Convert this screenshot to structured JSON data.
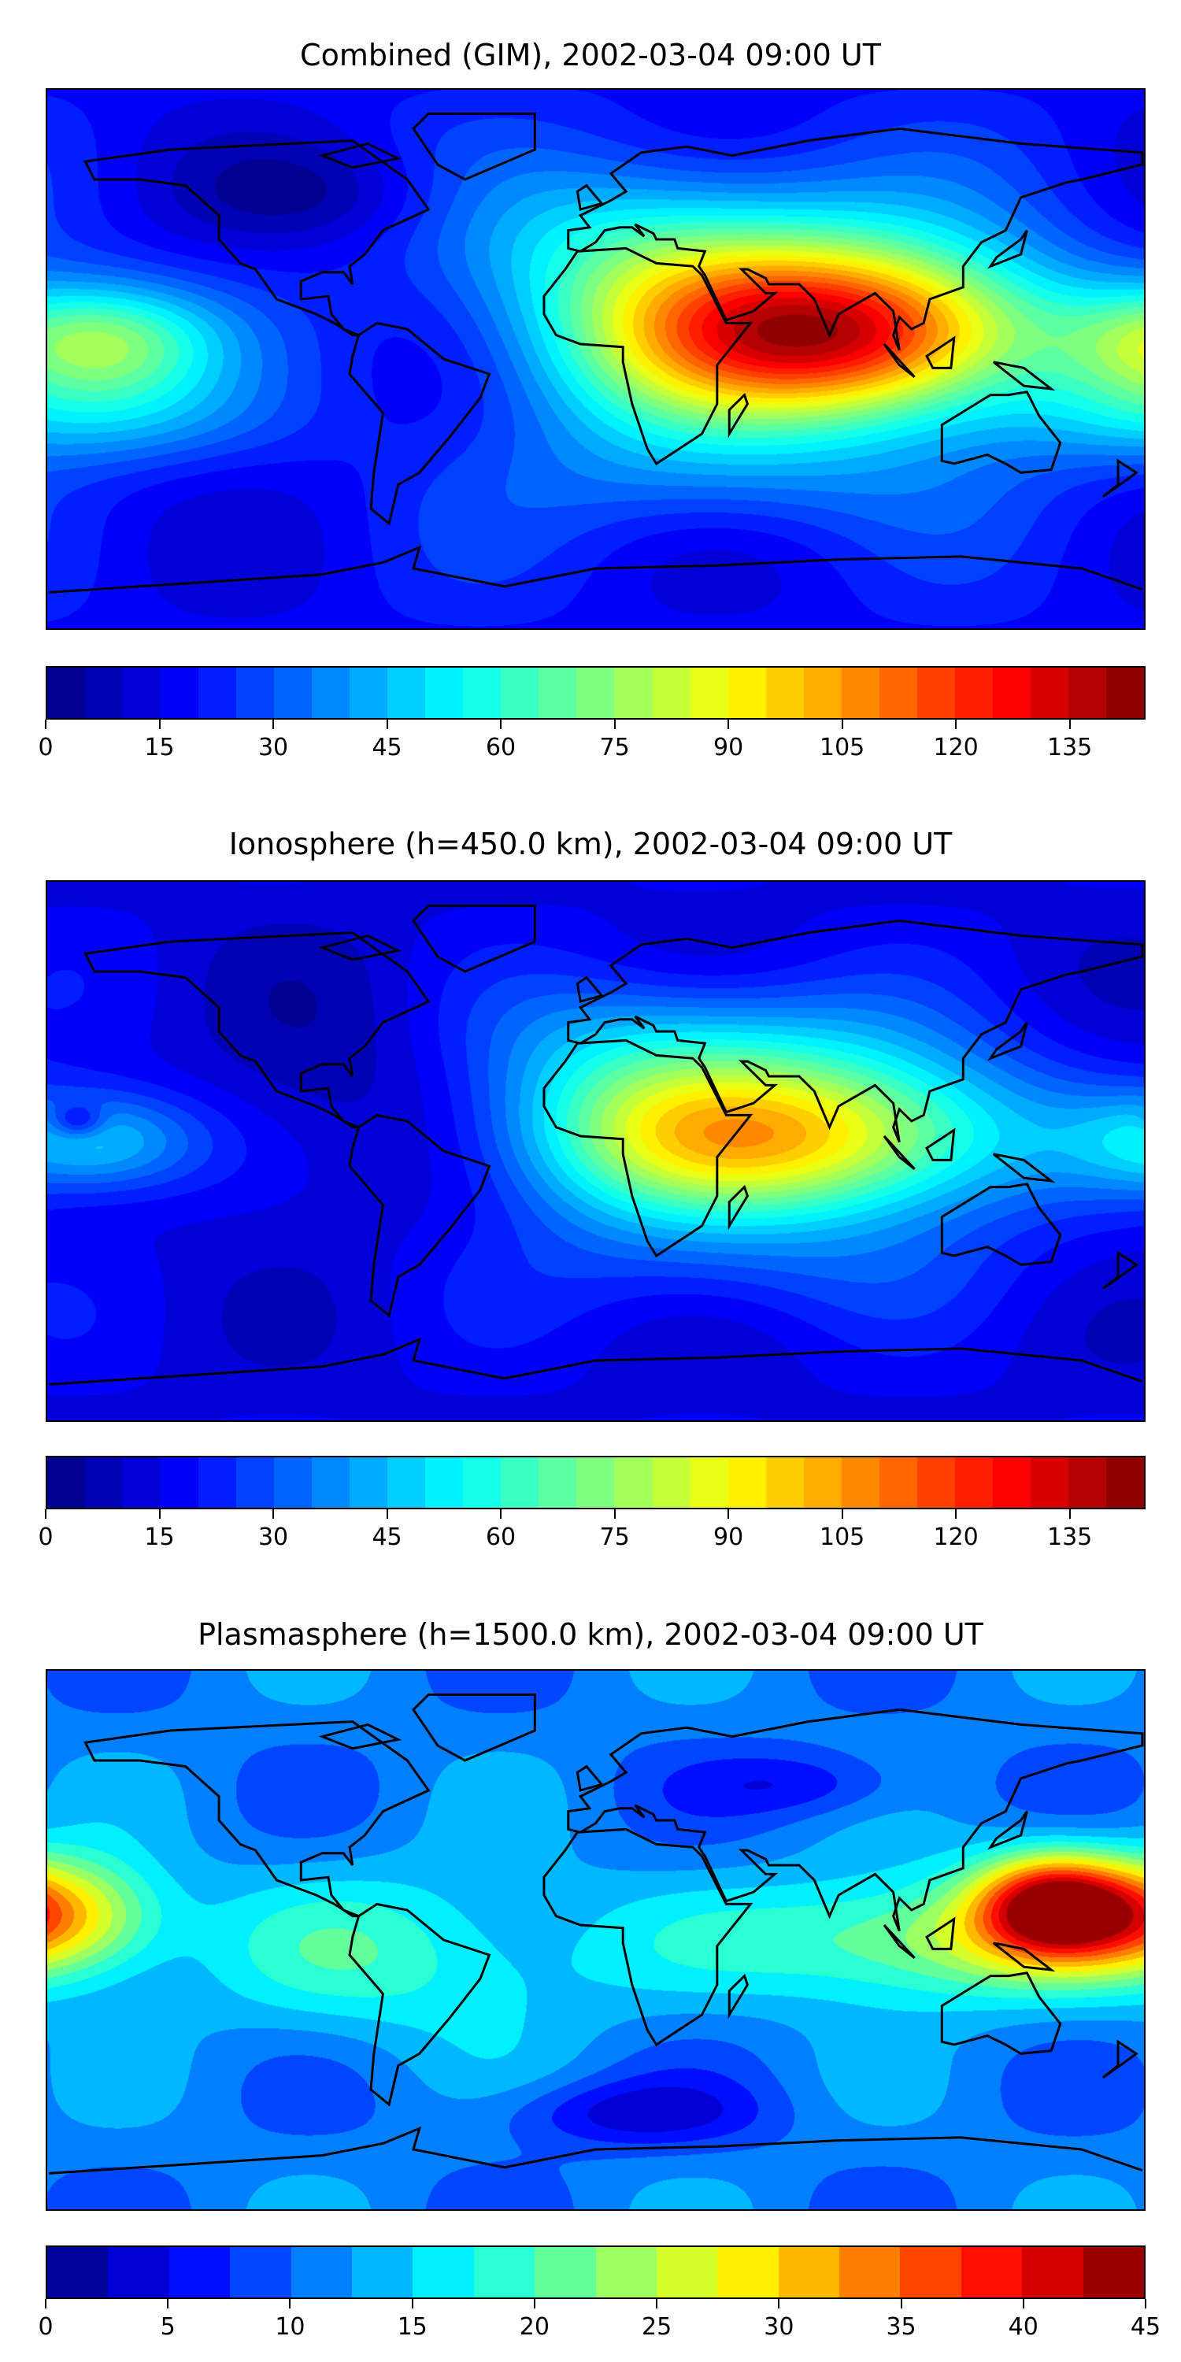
{
  "chart_data": [
    {
      "type": "heatmap",
      "subtype": "filled-contour-map",
      "title": "Combined (GIM), 2002-03-04 09:00 UT",
      "colormap": "jet",
      "levels": {
        "min": 0,
        "max": 145,
        "step": 5
      },
      "colorbar_ticks": [
        "0",
        "15",
        "30",
        "45",
        "60",
        "75",
        "90",
        "105",
        "120",
        "135"
      ],
      "xlim": [
        -180,
        180
      ],
      "ylim": [
        -90,
        90
      ],
      "features": [
        {
          "description": "maximum",
          "lon": 90,
          "lat": 10,
          "value": 125
        },
        {
          "description": "secondary band",
          "lon": -165,
          "lat": 5,
          "value": 75
        },
        {
          "description": "minimum over N America",
          "lon": -90,
          "lat": 55,
          "value": 5
        }
      ]
    },
    {
      "type": "heatmap",
      "subtype": "filled-contour-map",
      "title": "Ionosphere  (h=450.0 km), 2002-03-04 09:00 UT",
      "colormap": "jet",
      "levels": {
        "min": 0,
        "max": 145,
        "step": 5
      },
      "colorbar_ticks": [
        "0",
        "15",
        "30",
        "45",
        "60",
        "75",
        "90",
        "105",
        "120",
        "135"
      ],
      "xlim": [
        -180,
        180
      ],
      "ylim": [
        -90,
        90
      ],
      "features": [
        {
          "description": "maximum",
          "lon": 70,
          "lat": 5,
          "value": 95
        },
        {
          "description": "minimum over Americas",
          "lon": -85,
          "lat": 20,
          "value": 5
        }
      ]
    },
    {
      "type": "heatmap",
      "subtype": "filled-contour-map",
      "title": "Plasmasphere (h=1500.0 km), 2002-03-04 09:00 UT",
      "colormap": "jet",
      "levels": {
        "min": 0,
        "max": 45,
        "step": 2.5
      },
      "colorbar_ticks": [
        "0",
        "5",
        "10",
        "15",
        "20",
        "25",
        "30",
        "35",
        "40",
        "45"
      ],
      "xlim": [
        -180,
        180
      ],
      "ylim": [
        -90,
        90
      ],
      "features": [
        {
          "description": "maximum",
          "lon": 150,
          "lat": 12,
          "value": 40
        },
        {
          "description": "west Pacific high",
          "lon": -175,
          "lat": 8,
          "value": 28
        },
        {
          "description": "minimum",
          "lon": 10,
          "lat": -60,
          "value": 2
        }
      ]
    }
  ]
}
